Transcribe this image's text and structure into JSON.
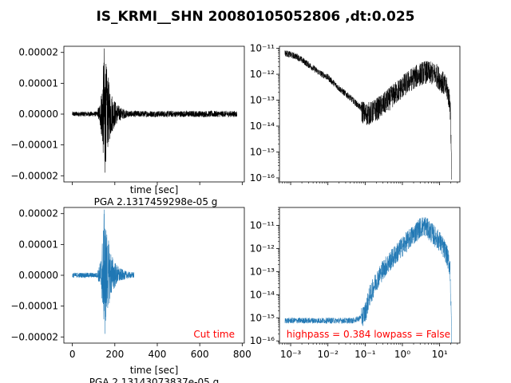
{
  "figure": {
    "title": "IS_KRMI__SHN 20080105052806 ,dt:0.025",
    "colors": {
      "raw": "#000000",
      "processed": "#1f77b4",
      "annotation": "#ff0000",
      "axes": "#000000"
    }
  },
  "chart_data": [
    {
      "id": "raw_time",
      "type": "line",
      "xlabel": "time [sec]",
      "ylabel": "",
      "annotation": "PGA 2.1317459298e-05 g",
      "xlim": [
        -40,
        810
      ],
      "ylim": [
        -2.2e-05,
        2.2e-05
      ],
      "xticks": [
        0,
        200,
        400,
        600,
        800
      ],
      "xtick_labels_shown": false,
      "yticks": [
        -2e-05,
        -1e-05,
        0.0,
        1e-05,
        2e-05
      ],
      "ytick_labels": [
        "−0.00002",
        "−0.00001",
        "0.00000",
        "0.00001",
        "0.00002"
      ],
      "signal": {
        "start": 0,
        "end": 775,
        "onset": 120,
        "peak_time": 150,
        "pga": 2.13e-05,
        "min": -1.9e-05,
        "color": "#000000"
      }
    },
    {
      "id": "raw_spectrum",
      "type": "line",
      "xscale": "log",
      "yscale": "log",
      "xlabel": "",
      "ylabel": "",
      "xlim": [
        0.0005,
        35
      ],
      "ylim": [
        7e-17,
        1.2e-11
      ],
      "xtick_labels_shown": false,
      "yticks": [
        1e-16,
        1e-15,
        1e-14,
        1e-13,
        1e-12,
        1e-11
      ],
      "ytick_labels": [
        "10⁻¹⁶",
        "10⁻¹⁵",
        "10⁻¹⁴",
        "10⁻¹³",
        "10⁻¹²",
        "10⁻¹¹"
      ],
      "envelope": {
        "f": [
          0.0007,
          0.0015,
          0.003,
          0.006,
          0.01,
          0.02,
          0.04,
          0.07,
          0.1,
          0.15,
          0.3,
          0.6,
          1,
          2,
          4,
          8,
          12,
          16,
          19,
          20.5,
          21
        ],
        "amp": [
          7e-12,
          5e-12,
          2.5e-12,
          1.2e-12,
          8e-13,
          3e-13,
          1.3e-13,
          6e-14,
          3.5e-14,
          4e-14,
          8e-14,
          2e-13,
          4e-13,
          9e-13,
          1.5e-12,
          1.2e-12,
          6e-13,
          3e-13,
          1e-13,
          2e-15,
          1e-16
        ]
      },
      "color": "#000000"
    },
    {
      "id": "processed_time",
      "type": "line",
      "xlabel": "time [sec]",
      "ylabel": "",
      "annotation": "PGA 2.13143073837e-05 g",
      "cut_label": "Cut time",
      "xlim": [
        -40,
        810
      ],
      "ylim": [
        -2.2e-05,
        2.2e-05
      ],
      "xticks": [
        0,
        200,
        400,
        600,
        800
      ],
      "xtick_labels": [
        "0",
        "200",
        "400",
        "600",
        "800"
      ],
      "yticks": [
        -2e-05,
        -1e-05,
        0.0,
        1e-05,
        2e-05
      ],
      "ytick_labels": [
        "−0.00002",
        "−0.00001",
        "0.00000",
        "0.00001",
        "0.00002"
      ],
      "signal": {
        "start": 0,
        "end": 290,
        "onset": 120,
        "peak_time": 150,
        "pga": 2.13e-05,
        "min": -1.9e-05,
        "color": "#1f77b4"
      }
    },
    {
      "id": "processed_spectrum",
      "type": "line",
      "xscale": "log",
      "yscale": "log",
      "xlabel": "",
      "ylabel": "",
      "filter_label": "highpass = 0.384 lowpass = False",
      "xlim": [
        0.0005,
        35
      ],
      "ylim": [
        8e-17,
        6e-11
      ],
      "xticks": [
        0.001,
        0.01,
        0.1,
        1,
        10
      ],
      "xtick_labels": [
        "10⁻³",
        "10⁻²",
        "10⁻¹",
        "10⁰",
        "10¹"
      ],
      "yticks": [
        1e-16,
        1e-15,
        1e-14,
        1e-13,
        1e-12,
        1e-11
      ],
      "ytick_labels": [
        "10⁻¹⁶",
        "10⁻¹⁵",
        "10⁻¹⁴",
        "10⁻¹³",
        "10⁻¹²",
        "10⁻¹¹"
      ],
      "envelope": {
        "f": [
          0.0007,
          0.02,
          0.05,
          0.07,
          0.1,
          0.13,
          0.2,
          0.3,
          0.5,
          1,
          2,
          3,
          4,
          6,
          10,
          15,
          19,
          20.5,
          21
        ],
        "amp": [
          8e-16,
          8e-16,
          8e-16,
          1e-15,
          2e-15,
          1e-14,
          5e-14,
          1.5e-13,
          4e-13,
          1.5e-12,
          5e-12,
          1e-11,
          1.2e-11,
          6e-12,
          2.5e-12,
          8e-13,
          2e-13,
          1e-15,
          1e-16
        ]
      },
      "color": "#1f77b4"
    }
  ]
}
